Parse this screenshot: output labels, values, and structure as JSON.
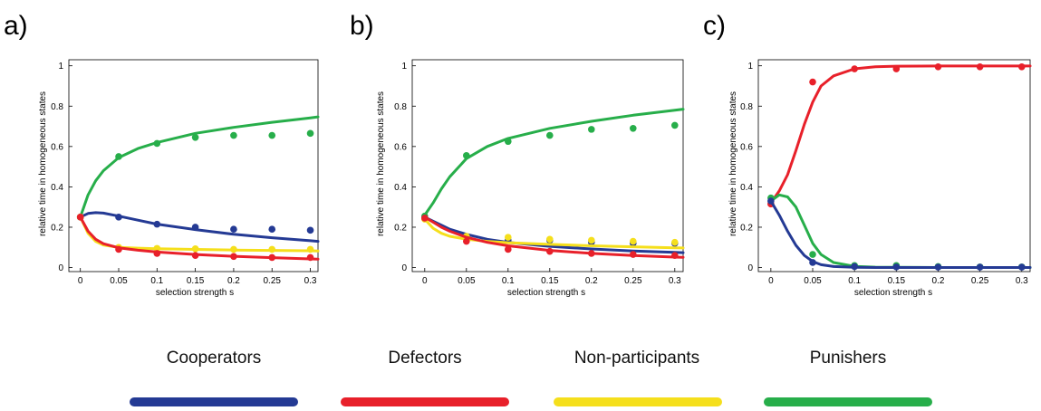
{
  "colors": {
    "cooperators": "#243a94",
    "defectors": "#e8202a",
    "nonparticipants": "#f5df1c",
    "punishers": "#27ae4a"
  },
  "legend": [
    {
      "label": "Cooperators",
      "color_key": "cooperators"
    },
    {
      "label": "Defectors",
      "color_key": "defectors"
    },
    {
      "label": "Non-participants",
      "color_key": "nonparticipants"
    },
    {
      "label": "Punishers",
      "color_key": "punishers"
    }
  ],
  "chart_data": [
    {
      "panel": "a)",
      "type": "line",
      "xlabel": "selection strength s",
      "ylabel": "relative time in homogeneous states",
      "xlim": [
        -0.015,
        0.31
      ],
      "ylim": [
        -0.02,
        1.03
      ],
      "xticks": [
        0,
        0.05,
        0.1,
        0.15,
        0.2,
        0.25,
        0.3
      ],
      "xtick_labels": [
        "0",
        "0.05",
        "0.1",
        "0.15",
        "0.2",
        "0.25",
        "0.3"
      ],
      "yticks": [
        0,
        0.2,
        0.4,
        0.6,
        0.8,
        1
      ],
      "ytick_labels": [
        "0",
        "0.2",
        "0.4",
        "0.6",
        "0.8",
        "1"
      ],
      "series": [
        {
          "name": "Punishers",
          "color_key": "punishers",
          "line_x": [
            0,
            0.01,
            0.02,
            0.03,
            0.05,
            0.075,
            0.1,
            0.15,
            0.2,
            0.25,
            0.3,
            0.31
          ],
          "line_y": [
            0.25,
            0.36,
            0.43,
            0.48,
            0.545,
            0.59,
            0.62,
            0.665,
            0.695,
            0.72,
            0.742,
            0.747
          ],
          "points_x": [
            0,
            0.05,
            0.1,
            0.15,
            0.2,
            0.25,
            0.3
          ],
          "points_y": [
            0.25,
            0.55,
            0.615,
            0.645,
            0.655,
            0.655,
            0.665
          ]
        },
        {
          "name": "Cooperators",
          "color_key": "cooperators",
          "line_x": [
            0,
            0.01,
            0.02,
            0.03,
            0.05,
            0.075,
            0.1,
            0.15,
            0.2,
            0.25,
            0.3,
            0.31
          ],
          "line_y": [
            0.25,
            0.268,
            0.272,
            0.27,
            0.255,
            0.235,
            0.215,
            0.188,
            0.165,
            0.148,
            0.133,
            0.13
          ],
          "points_x": [
            0,
            0.05,
            0.1,
            0.15,
            0.2,
            0.25,
            0.3
          ],
          "points_y": [
            0.25,
            0.25,
            0.215,
            0.2,
            0.19,
            0.19,
            0.185
          ]
        },
        {
          "name": "Non-participants",
          "color_key": "nonparticipants",
          "line_x": [
            0,
            0.01,
            0.02,
            0.03,
            0.05,
            0.075,
            0.1,
            0.15,
            0.2,
            0.25,
            0.3,
            0.31
          ],
          "line_y": [
            0.25,
            0.17,
            0.13,
            0.112,
            0.1,
            0.096,
            0.093,
            0.09,
            0.087,
            0.085,
            0.083,
            0.082
          ],
          "points_x": [
            0,
            0.05,
            0.1,
            0.15,
            0.2,
            0.25,
            0.3
          ],
          "points_y": [
            0.25,
            0.1,
            0.095,
            0.093,
            0.09,
            0.09,
            0.09
          ]
        },
        {
          "name": "Defectors",
          "color_key": "defectors",
          "line_x": [
            0,
            0.01,
            0.02,
            0.03,
            0.05,
            0.075,
            0.1,
            0.15,
            0.2,
            0.25,
            0.3,
            0.31
          ],
          "line_y": [
            0.25,
            0.18,
            0.14,
            0.118,
            0.098,
            0.086,
            0.077,
            0.065,
            0.056,
            0.049,
            0.043,
            0.042
          ],
          "points_x": [
            0,
            0.05,
            0.1,
            0.15,
            0.2,
            0.25,
            0.3
          ],
          "points_y": [
            0.25,
            0.09,
            0.07,
            0.06,
            0.055,
            0.05,
            0.05
          ]
        }
      ]
    },
    {
      "panel": "b)",
      "type": "line",
      "xlabel": "selection strength s",
      "ylabel": "relative time in homogeneous states",
      "xlim": [
        -0.015,
        0.31
      ],
      "ylim": [
        -0.02,
        1.03
      ],
      "xticks": [
        0,
        0.05,
        0.1,
        0.15,
        0.2,
        0.25,
        0.3
      ],
      "xtick_labels": [
        "0",
        "0.05",
        "0.1",
        "0.15",
        "0.2",
        "0.25",
        "0.3"
      ],
      "yticks": [
        0,
        0.2,
        0.4,
        0.6,
        0.8,
        1
      ],
      "ytick_labels": [
        "0",
        "0.2",
        "0.4",
        "0.6",
        "0.8",
        "1"
      ],
      "series": [
        {
          "name": "Punishers",
          "color_key": "punishers",
          "line_x": [
            0,
            0.01,
            0.02,
            0.03,
            0.05,
            0.075,
            0.1,
            0.15,
            0.2,
            0.25,
            0.3,
            0.31
          ],
          "line_y": [
            0.26,
            0.32,
            0.39,
            0.45,
            0.54,
            0.6,
            0.64,
            0.69,
            0.725,
            0.755,
            0.78,
            0.785
          ],
          "points_x": [
            0,
            0.05,
            0.1,
            0.15,
            0.2,
            0.25,
            0.3
          ],
          "points_y": [
            0.255,
            0.555,
            0.625,
            0.655,
            0.685,
            0.69,
            0.705
          ]
        },
        {
          "name": "Cooperators",
          "color_key": "cooperators",
          "line_x": [
            0,
            0.01,
            0.02,
            0.03,
            0.05,
            0.075,
            0.1,
            0.15,
            0.2,
            0.25,
            0.3,
            0.31
          ],
          "line_y": [
            0.25,
            0.23,
            0.21,
            0.19,
            0.165,
            0.14,
            0.125,
            0.105,
            0.092,
            0.082,
            0.075,
            0.074
          ],
          "points_x": [
            0,
            0.05,
            0.1,
            0.15,
            0.2,
            0.25,
            0.3
          ],
          "points_y": [
            0.245,
            0.15,
            0.135,
            0.135,
            0.125,
            0.12,
            0.12
          ]
        },
        {
          "name": "Non-participants",
          "color_key": "nonparticipants",
          "line_x": [
            0,
            0.01,
            0.02,
            0.03,
            0.05,
            0.075,
            0.1,
            0.15,
            0.2,
            0.25,
            0.3,
            0.31
          ],
          "line_y": [
            0.24,
            0.195,
            0.17,
            0.155,
            0.14,
            0.13,
            0.123,
            0.115,
            0.108,
            0.103,
            0.098,
            0.097
          ],
          "points_x": [
            0,
            0.05,
            0.1,
            0.15,
            0.2,
            0.25,
            0.3
          ],
          "points_y": [
            0.24,
            0.155,
            0.15,
            0.14,
            0.135,
            0.13,
            0.125
          ]
        },
        {
          "name": "Defectors",
          "color_key": "defectors",
          "line_x": [
            0,
            0.01,
            0.02,
            0.03,
            0.05,
            0.075,
            0.1,
            0.15,
            0.2,
            0.25,
            0.3,
            0.31
          ],
          "line_y": [
            0.25,
            0.225,
            0.2,
            0.18,
            0.15,
            0.125,
            0.108,
            0.085,
            0.07,
            0.06,
            0.052,
            0.051
          ],
          "points_x": [
            0,
            0.05,
            0.1,
            0.15,
            0.2,
            0.25,
            0.3
          ],
          "points_y": [
            0.245,
            0.13,
            0.09,
            0.08,
            0.07,
            0.065,
            0.06
          ]
        }
      ]
    },
    {
      "panel": "c)",
      "type": "line",
      "xlabel": "selection strength s",
      "ylabel": "relative time in homogeneous states",
      "xlim": [
        -0.015,
        0.31
      ],
      "ylim": [
        -0.02,
        1.03
      ],
      "xticks": [
        0,
        0.05,
        0.1,
        0.15,
        0.2,
        0.25,
        0.3
      ],
      "xtick_labels": [
        "0",
        "0.05",
        "0.1",
        "0.15",
        "0.2",
        "0.25",
        "0.3"
      ],
      "yticks": [
        0,
        0.2,
        0.4,
        0.6,
        0.8,
        1
      ],
      "ytick_labels": [
        "0",
        "0.2",
        "0.4",
        "0.6",
        "0.8",
        "1"
      ],
      "series": [
        {
          "name": "Defectors",
          "color_key": "defectors",
          "line_x": [
            0,
            0.01,
            0.02,
            0.03,
            0.04,
            0.05,
            0.06,
            0.075,
            0.1,
            0.125,
            0.15,
            0.2,
            0.25,
            0.3,
            0.31
          ],
          "line_y": [
            0.32,
            0.38,
            0.46,
            0.58,
            0.71,
            0.82,
            0.9,
            0.95,
            0.985,
            0.995,
            0.998,
            0.999,
            0.999,
            0.999,
            0.999
          ],
          "points_x": [
            0,
            0.05,
            0.1,
            0.15,
            0.2,
            0.25,
            0.3
          ],
          "points_y": [
            0.315,
            0.92,
            0.985,
            0.985,
            0.995,
            0.995,
            0.995
          ]
        },
        {
          "name": "Punishers",
          "color_key": "punishers",
          "line_x": [
            0,
            0.01,
            0.02,
            0.03,
            0.04,
            0.05,
            0.06,
            0.075,
            0.1,
            0.125,
            0.15,
            0.2,
            0.25,
            0.3,
            0.31
          ],
          "line_y": [
            0.33,
            0.36,
            0.35,
            0.3,
            0.21,
            0.12,
            0.065,
            0.025,
            0.006,
            0.002,
            0.001,
            0.0,
            0.0,
            0.0,
            0.0
          ],
          "points_x": [
            0,
            0.05,
            0.1,
            0.15,
            0.2,
            0.25,
            0.3
          ],
          "points_y": [
            0.345,
            0.065,
            0.01,
            0.01,
            0.005,
            0.003,
            0.003
          ]
        },
        {
          "name": "Cooperators",
          "color_key": "cooperators",
          "line_x": [
            0,
            0.01,
            0.02,
            0.03,
            0.04,
            0.05,
            0.06,
            0.075,
            0.1,
            0.125,
            0.15,
            0.2,
            0.25,
            0.3,
            0.31
          ],
          "line_y": [
            0.33,
            0.26,
            0.18,
            0.11,
            0.06,
            0.03,
            0.014,
            0.005,
            0.001,
            0.0,
            0.0,
            0.0,
            0.0,
            0.0,
            0.0
          ],
          "points_x": [
            0,
            0.05,
            0.1,
            0.15,
            0.2,
            0.25,
            0.3
          ],
          "points_y": [
            0.33,
            0.025,
            0.005,
            0.003,
            0.002,
            0.002,
            0.002
          ]
        }
      ]
    }
  ]
}
